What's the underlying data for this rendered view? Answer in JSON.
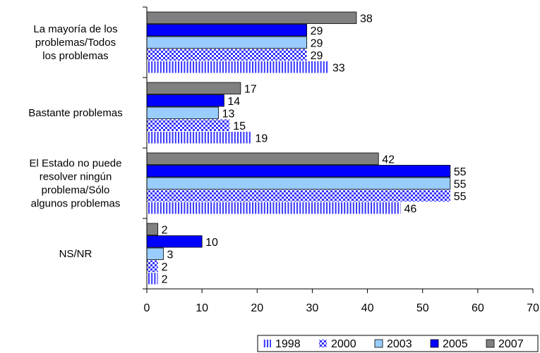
{
  "chart_data": {
    "type": "bar",
    "orientation": "horizontal",
    "categories": [
      [
        "La mayoría de los",
        "problemas/Todos",
        "los problemas"
      ],
      [
        "Bastante problemas"
      ],
      [
        "El Estado no puede",
        "resolver ningún",
        "problema/Sólo",
        "algunos problemas"
      ],
      [
        "NS/NR"
      ]
    ],
    "series": [
      {
        "name": "1998",
        "values": [
          33,
          19,
          46,
          2
        ],
        "color": "#3333ff",
        "pattern": "vertical-lines"
      },
      {
        "name": "2000",
        "values": [
          29,
          15,
          55,
          2
        ],
        "color": "#3333ff",
        "pattern": "checker"
      },
      {
        "name": "2003",
        "values": [
          29,
          13,
          55,
          3
        ],
        "color": "#99ccff",
        "pattern": "solid"
      },
      {
        "name": "2005",
        "values": [
          29,
          14,
          55,
          10
        ],
        "color": "#0000ff",
        "pattern": "solid"
      },
      {
        "name": "2007",
        "values": [
          38,
          17,
          42,
          2
        ],
        "color": "#808080",
        "pattern": "solid"
      }
    ],
    "xlim": [
      0,
      70
    ],
    "xticks": [
      "0",
      "10",
      "20",
      "30",
      "40",
      "50",
      "60",
      "70"
    ],
    "grid": false,
    "legend_position": "bottom-right",
    "title": "",
    "xlabel": "",
    "ylabel": ""
  }
}
